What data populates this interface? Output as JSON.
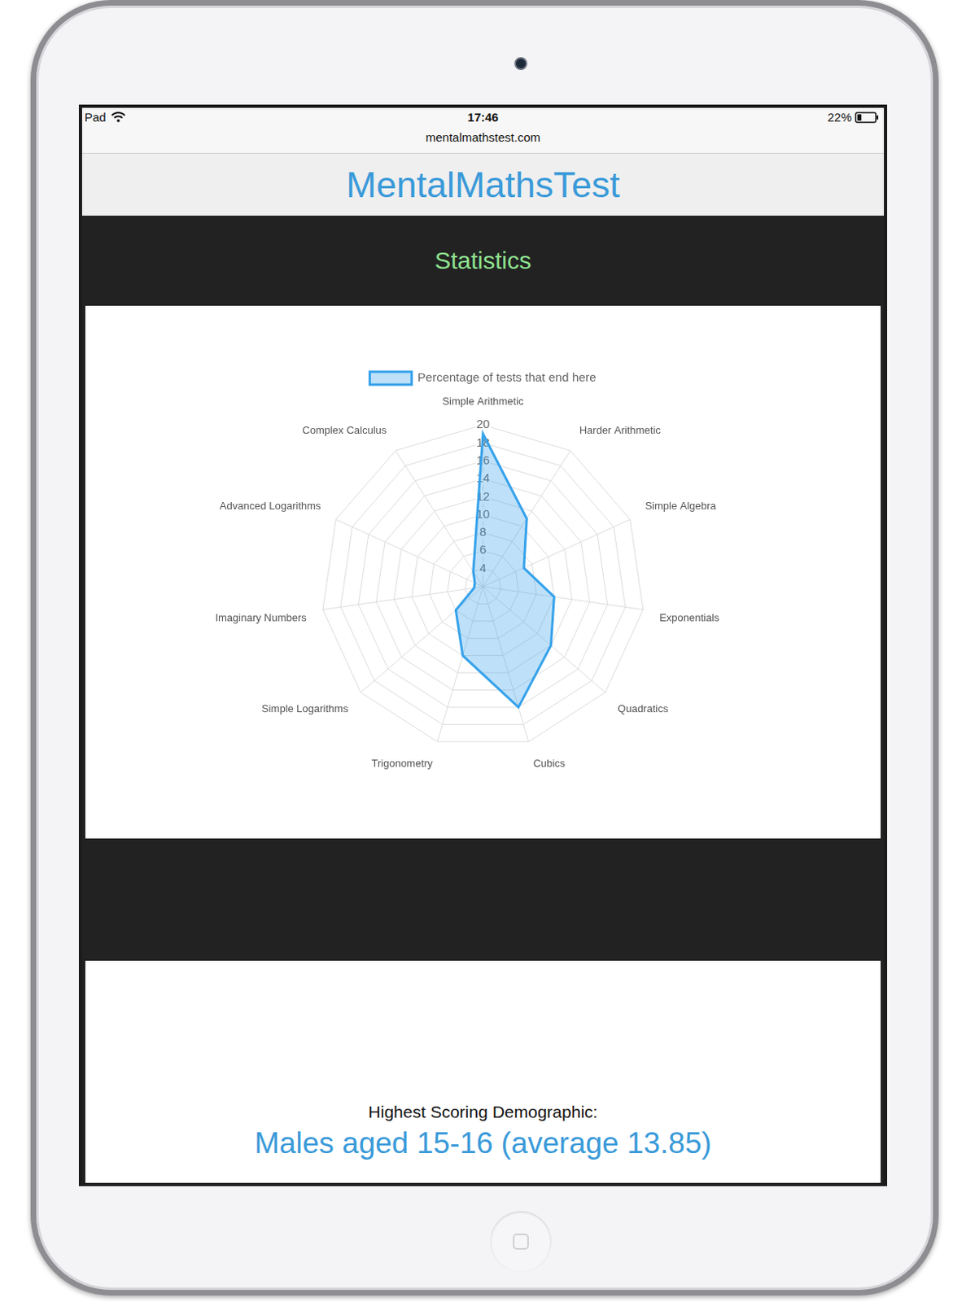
{
  "status_bar": {
    "device": "Pad",
    "time": "17:46",
    "battery": "22%"
  },
  "url": "mentalmathstest.com",
  "header": {
    "title": "MentalMathsTest"
  },
  "section_title": "Statistics",
  "chart_data": {
    "type": "radar",
    "categories": [
      "Simple Arithmetic",
      "Harder Arithmetic",
      "Simple Algebra",
      "Exponentials",
      "Quadratics",
      "Cubics",
      "Trigonometry",
      "Simple Logarithms",
      "Imaginary Numbers",
      "Advanced Logarithms",
      "Complex Calculus"
    ],
    "series": [
      {
        "name": "Percentage of tests that end here",
        "color": "#36a2eb",
        "values": [
          19,
          11,
          7,
          10,
          12,
          16,
          10,
          6,
          3,
          3,
          4
        ]
      }
    ],
    "ylim": [
      2,
      20
    ],
    "yticks": [
      4,
      6,
      8,
      10,
      12,
      14,
      16,
      18,
      20
    ],
    "grid": true,
    "legend": "top"
  },
  "demographic": {
    "label": "Highest Scoring Demographic:",
    "value": "Males aged 15-16 (average 13.85)"
  }
}
